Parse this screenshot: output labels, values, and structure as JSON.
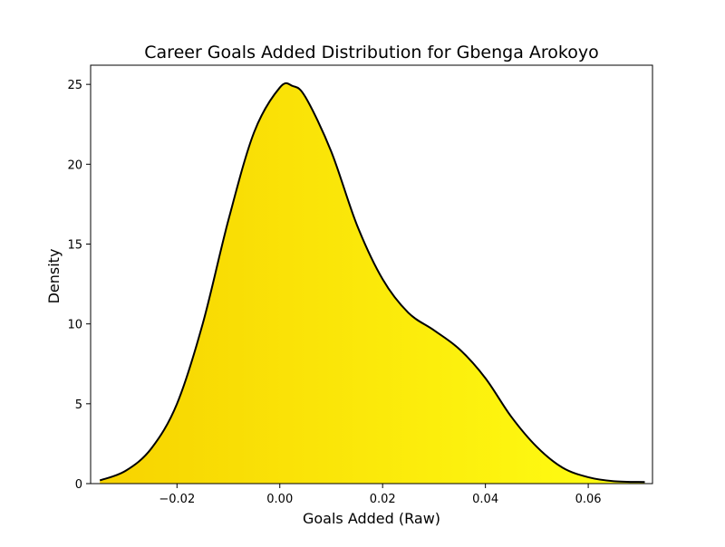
{
  "chart_data": {
    "type": "area",
    "title": "Career Goals Added Distribution for Gbenga Arokoyo",
    "xlabel": "Goals Added (Raw)",
    "ylabel": "Density",
    "xlim": [
      -0.0368,
      0.0725
    ],
    "ylim": [
      0,
      26.2
    ],
    "xticks": [
      -0.02,
      0.0,
      0.02,
      0.04,
      0.06
    ],
    "xtick_labels": [
      "−0.02",
      "0.00",
      "0.02",
      "0.04",
      "0.06"
    ],
    "yticks": [
      0,
      5,
      10,
      15,
      20,
      25
    ],
    "ytick_labels": [
      "0",
      "5",
      "10",
      "15",
      "20",
      "25"
    ],
    "grid": false,
    "legend": "none",
    "line_color": "#000000",
    "fill_gradient": [
      "#f7d300",
      "#ffff14"
    ],
    "series": [
      {
        "x": [
          -0.035,
          -0.03,
          -0.025,
          -0.02,
          -0.015,
          -0.01,
          -0.005,
          0.0,
          0.0025,
          0.005,
          0.01,
          0.015,
          0.02,
          0.025,
          0.03,
          0.035,
          0.04,
          0.045,
          0.05,
          0.055,
          0.06,
          0.065,
          0.071
        ],
        "y": [
          0.2,
          0.8,
          2.2,
          5.0,
          10.0,
          16.5,
          22.0,
          24.8,
          24.9,
          24.2,
          20.8,
          16.2,
          12.8,
          10.7,
          9.6,
          8.4,
          6.6,
          4.2,
          2.3,
          1.0,
          0.4,
          0.15,
          0.1
        ]
      }
    ]
  }
}
